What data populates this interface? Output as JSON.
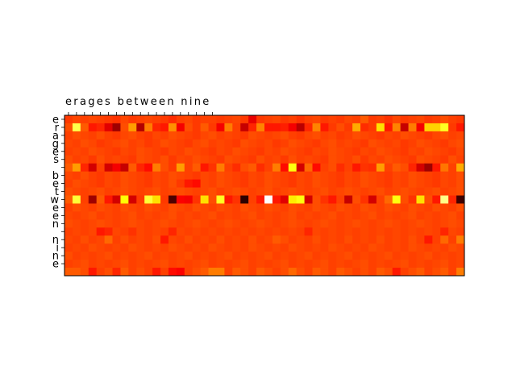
{
  "chart_data": {
    "type": "heatmap",
    "title": "",
    "xlabel": "",
    "ylabel": "",
    "colormap": "hot",
    "top_text": "erages between nine",
    "x_tick_labels": [
      "e",
      "r",
      "a",
      "g",
      "e",
      "s",
      " ",
      "b",
      "e",
      "t",
      "w",
      "e",
      "e",
      "n",
      " ",
      "n",
      "i",
      "n",
      "e"
    ],
    "y_tick_labels": [
      "e",
      "r",
      "a",
      "g",
      "e",
      "s",
      " ",
      "b",
      "e",
      "t",
      "w",
      "e",
      "e",
      "n",
      " ",
      "n",
      "i",
      "n",
      "e"
    ],
    "n_columns": 50,
    "values": [
      [
        0.45,
        0.47,
        0.46,
        0.47,
        0.46,
        0.45,
        0.44,
        0.47,
        0.45,
        0.46,
        0.47,
        0.46,
        0.45,
        0.43,
        0.46,
        0.47,
        0.45,
        0.46,
        0.46,
        0.45,
        0.46,
        0.47,
        0.45,
        0.33,
        0.45,
        0.46,
        0.47,
        0.45,
        0.46,
        0.44,
        0.46,
        0.47,
        0.45,
        0.46,
        0.45,
        0.47,
        0.46,
        0.5,
        0.45,
        0.46,
        0.44,
        0.47,
        0.45,
        0.46,
        0.47,
        0.45,
        0.46,
        0.48,
        0.46,
        0.45
      ],
      [
        0.48,
        0.82,
        0.5,
        0.4,
        0.42,
        0.32,
        0.22,
        0.48,
        0.6,
        0.25,
        0.55,
        0.42,
        0.4,
        0.58,
        0.35,
        0.48,
        0.45,
        0.5,
        0.45,
        0.35,
        0.55,
        0.46,
        0.28,
        0.42,
        0.56,
        0.4,
        0.4,
        0.41,
        0.35,
        0.26,
        0.42,
        0.56,
        0.4,
        0.45,
        0.48,
        0.45,
        0.62,
        0.43,
        0.45,
        0.7,
        0.4,
        0.56,
        0.28,
        0.55,
        0.35,
        0.68,
        0.68,
        0.78,
        0.45,
        0.4
      ],
      [
        0.46,
        0.48,
        0.47,
        0.46,
        0.48,
        0.46,
        0.45,
        0.47,
        0.48,
        0.46,
        0.45,
        0.47,
        0.46,
        0.48,
        0.47,
        0.46,
        0.45,
        0.47,
        0.48,
        0.46,
        0.47,
        0.46,
        0.45,
        0.48,
        0.47,
        0.46,
        0.47,
        0.48,
        0.46,
        0.45,
        0.47,
        0.48,
        0.46,
        0.47,
        0.45,
        0.46,
        0.48,
        0.47,
        0.46,
        0.45,
        0.47,
        0.46,
        0.48,
        0.47,
        0.46,
        0.45,
        0.47,
        0.48,
        0.46,
        0.47
      ],
      [
        0.47,
        0.46,
        0.48,
        0.47,
        0.45,
        0.46,
        0.47,
        0.48,
        0.46,
        0.47,
        0.45,
        0.46,
        0.48,
        0.47,
        0.46,
        0.45,
        0.47,
        0.48,
        0.46,
        0.47,
        0.46,
        0.45,
        0.48,
        0.47,
        0.46,
        0.47,
        0.45,
        0.46,
        0.48,
        0.47,
        0.46,
        0.45,
        0.47,
        0.48,
        0.46,
        0.47,
        0.46,
        0.45,
        0.48,
        0.47,
        0.46,
        0.47,
        0.45,
        0.46,
        0.48,
        0.47,
        0.46,
        0.45,
        0.47,
        0.48
      ],
      [
        0.46,
        0.47,
        0.46,
        0.48,
        0.47,
        0.46,
        0.45,
        0.47,
        0.46,
        0.48,
        0.47,
        0.46,
        0.45,
        0.47,
        0.46,
        0.48,
        0.47,
        0.46,
        0.45,
        0.47,
        0.46,
        0.48,
        0.47,
        0.46,
        0.45,
        0.47,
        0.46,
        0.48,
        0.47,
        0.46,
        0.45,
        0.47,
        0.46,
        0.48,
        0.47,
        0.46,
        0.45,
        0.47,
        0.46,
        0.48,
        0.47,
        0.46,
        0.45,
        0.47,
        0.46,
        0.48,
        0.47,
        0.46,
        0.45,
        0.47
      ],
      [
        0.48,
        0.46,
        0.47,
        0.45,
        0.48,
        0.46,
        0.47,
        0.46,
        0.45,
        0.48,
        0.47,
        0.46,
        0.48,
        0.45,
        0.47,
        0.46,
        0.48,
        0.47,
        0.46,
        0.45,
        0.48,
        0.47,
        0.46,
        0.45,
        0.48,
        0.46,
        0.47,
        0.45,
        0.48,
        0.46,
        0.47,
        0.46,
        0.45,
        0.48,
        0.47,
        0.46,
        0.48,
        0.45,
        0.47,
        0.46,
        0.48,
        0.47,
        0.46,
        0.45,
        0.48,
        0.47,
        0.46,
        0.45,
        0.48,
        0.46
      ],
      [
        0.5,
        0.6,
        0.42,
        0.3,
        0.46,
        0.3,
        0.35,
        0.28,
        0.5,
        0.42,
        0.38,
        0.55,
        0.48,
        0.45,
        0.6,
        0.46,
        0.5,
        0.4,
        0.44,
        0.55,
        0.46,
        0.43,
        0.48,
        0.5,
        0.43,
        0.46,
        0.55,
        0.38,
        0.76,
        0.3,
        0.52,
        0.38,
        0.46,
        0.48,
        0.43,
        0.46,
        0.4,
        0.44,
        0.43,
        0.6,
        0.46,
        0.5,
        0.48,
        0.42,
        0.3,
        0.22,
        0.4,
        0.54,
        0.46,
        0.62
      ],
      [
        0.47,
        0.46,
        0.48,
        0.46,
        0.45,
        0.47,
        0.46,
        0.48,
        0.47,
        0.46,
        0.45,
        0.47,
        0.46,
        0.48,
        0.47,
        0.46,
        0.45,
        0.47,
        0.46,
        0.48,
        0.47,
        0.46,
        0.45,
        0.47,
        0.46,
        0.48,
        0.47,
        0.46,
        0.45,
        0.47,
        0.46,
        0.48,
        0.47,
        0.46,
        0.45,
        0.47,
        0.46,
        0.48,
        0.47,
        0.46,
        0.45,
        0.47,
        0.46,
        0.48,
        0.47,
        0.46,
        0.45,
        0.47,
        0.46,
        0.48
      ],
      [
        0.46,
        0.48,
        0.47,
        0.46,
        0.45,
        0.47,
        0.46,
        0.48,
        0.47,
        0.46,
        0.45,
        0.47,
        0.46,
        0.48,
        0.45,
        0.4,
        0.38,
        0.47,
        0.46,
        0.48,
        0.47,
        0.46,
        0.45,
        0.47,
        0.46,
        0.48,
        0.47,
        0.46,
        0.45,
        0.47,
        0.46,
        0.48,
        0.47,
        0.46,
        0.45,
        0.47,
        0.46,
        0.48,
        0.47,
        0.46,
        0.45,
        0.47,
        0.46,
        0.48,
        0.47,
        0.46,
        0.45,
        0.47,
        0.46,
        0.48
      ],
      [
        0.48,
        0.47,
        0.46,
        0.47,
        0.48,
        0.46,
        0.47,
        0.48,
        0.47,
        0.46,
        0.47,
        0.48,
        0.46,
        0.47,
        0.48,
        0.47,
        0.46,
        0.47,
        0.48,
        0.46,
        0.47,
        0.48,
        0.47,
        0.46,
        0.47,
        0.48,
        0.46,
        0.47,
        0.48,
        0.47,
        0.46,
        0.47,
        0.48,
        0.46,
        0.47,
        0.48,
        0.47,
        0.46,
        0.47,
        0.48,
        0.46,
        0.47,
        0.48,
        0.47,
        0.46,
        0.47,
        0.48,
        0.46,
        0.47,
        0.48
      ],
      [
        0.5,
        0.8,
        0.46,
        0.22,
        0.5,
        0.4,
        0.3,
        0.75,
        0.3,
        0.45,
        0.8,
        0.7,
        0.45,
        0.1,
        0.36,
        0.35,
        0.44,
        0.7,
        0.48,
        0.78,
        0.4,
        0.44,
        0.05,
        0.46,
        0.4,
        1.0,
        0.4,
        0.32,
        0.72,
        0.76,
        0.3,
        0.48,
        0.44,
        0.4,
        0.46,
        0.28,
        0.48,
        0.44,
        0.3,
        0.46,
        0.52,
        0.76,
        0.48,
        0.44,
        0.7,
        0.48,
        0.4,
        0.88,
        0.42,
        0.08
      ],
      [
        0.46,
        0.48,
        0.47,
        0.46,
        0.48,
        0.47,
        0.46,
        0.48,
        0.47,
        0.46,
        0.48,
        0.47,
        0.46,
        0.48,
        0.47,
        0.46,
        0.48,
        0.47,
        0.46,
        0.48,
        0.47,
        0.46,
        0.48,
        0.47,
        0.46,
        0.48,
        0.47,
        0.46,
        0.48,
        0.47,
        0.46,
        0.48,
        0.47,
        0.46,
        0.48,
        0.47,
        0.46,
        0.48,
        0.47,
        0.46,
        0.48,
        0.47,
        0.46,
        0.48,
        0.47,
        0.46,
        0.48,
        0.47,
        0.46,
        0.48
      ],
      [
        0.47,
        0.46,
        0.47,
        0.48,
        0.46,
        0.47,
        0.46,
        0.47,
        0.48,
        0.46,
        0.47,
        0.46,
        0.47,
        0.48,
        0.46,
        0.47,
        0.46,
        0.47,
        0.48,
        0.46,
        0.47,
        0.46,
        0.47,
        0.48,
        0.46,
        0.47,
        0.46,
        0.47,
        0.48,
        0.46,
        0.47,
        0.46,
        0.47,
        0.48,
        0.46,
        0.47,
        0.46,
        0.47,
        0.48,
        0.46,
        0.47,
        0.46,
        0.47,
        0.48,
        0.46,
        0.47,
        0.46,
        0.47,
        0.48,
        0.46
      ],
      [
        0.48,
        0.47,
        0.46,
        0.47,
        0.48,
        0.47,
        0.46,
        0.47,
        0.48,
        0.47,
        0.46,
        0.47,
        0.48,
        0.47,
        0.46,
        0.47,
        0.48,
        0.47,
        0.46,
        0.47,
        0.48,
        0.47,
        0.46,
        0.47,
        0.48,
        0.47,
        0.46,
        0.47,
        0.48,
        0.47,
        0.46,
        0.47,
        0.48,
        0.47,
        0.46,
        0.47,
        0.48,
        0.47,
        0.46,
        0.47,
        0.48,
        0.47,
        0.46,
        0.47,
        0.48,
        0.47,
        0.46,
        0.47,
        0.48,
        0.47
      ],
      [
        0.46,
        0.47,
        0.46,
        0.47,
        0.4,
        0.42,
        0.47,
        0.46,
        0.44,
        0.47,
        0.46,
        0.47,
        0.46,
        0.42,
        0.47,
        0.46,
        0.47,
        0.46,
        0.47,
        0.46,
        0.47,
        0.46,
        0.47,
        0.46,
        0.47,
        0.46,
        0.47,
        0.46,
        0.47,
        0.46,
        0.42,
        0.47,
        0.46,
        0.47,
        0.46,
        0.47,
        0.46,
        0.47,
        0.46,
        0.47,
        0.46,
        0.47,
        0.46,
        0.47,
        0.46,
        0.47,
        0.46,
        0.42,
        0.47,
        0.46
      ],
      [
        0.47,
        0.46,
        0.48,
        0.46,
        0.47,
        0.52,
        0.46,
        0.48,
        0.46,
        0.47,
        0.46,
        0.48,
        0.4,
        0.47,
        0.46,
        0.48,
        0.46,
        0.47,
        0.46,
        0.48,
        0.46,
        0.47,
        0.46,
        0.48,
        0.46,
        0.47,
        0.5,
        0.48,
        0.46,
        0.47,
        0.46,
        0.48,
        0.46,
        0.47,
        0.46,
        0.48,
        0.46,
        0.47,
        0.46,
        0.48,
        0.46,
        0.47,
        0.46,
        0.48,
        0.46,
        0.4,
        0.46,
        0.52,
        0.46,
        0.55
      ],
      [
        0.46,
        0.47,
        0.46,
        0.48,
        0.47,
        0.46,
        0.47,
        0.46,
        0.48,
        0.47,
        0.46,
        0.47,
        0.46,
        0.48,
        0.47,
        0.46,
        0.47,
        0.46,
        0.48,
        0.47,
        0.46,
        0.47,
        0.46,
        0.48,
        0.47,
        0.46,
        0.47,
        0.46,
        0.48,
        0.47,
        0.46,
        0.47,
        0.46,
        0.48,
        0.47,
        0.46,
        0.47,
        0.46,
        0.48,
        0.47,
        0.46,
        0.47,
        0.46,
        0.48,
        0.47,
        0.46,
        0.47,
        0.46,
        0.48,
        0.47
      ],
      [
        0.48,
        0.46,
        0.47,
        0.46,
        0.47,
        0.48,
        0.46,
        0.47,
        0.46,
        0.47,
        0.48,
        0.46,
        0.47,
        0.46,
        0.47,
        0.48,
        0.46,
        0.47,
        0.46,
        0.47,
        0.48,
        0.46,
        0.47,
        0.46,
        0.47,
        0.48,
        0.46,
        0.47,
        0.46,
        0.47,
        0.48,
        0.46,
        0.47,
        0.46,
        0.47,
        0.48,
        0.46,
        0.47,
        0.46,
        0.47,
        0.48,
        0.46,
        0.47,
        0.46,
        0.47,
        0.48,
        0.46,
        0.47,
        0.46,
        0.47
      ],
      [
        0.46,
        0.47,
        0.48,
        0.46,
        0.47,
        0.46,
        0.47,
        0.48,
        0.46,
        0.47,
        0.46,
        0.47,
        0.48,
        0.46,
        0.47,
        0.46,
        0.47,
        0.48,
        0.46,
        0.47,
        0.46,
        0.47,
        0.48,
        0.46,
        0.47,
        0.46,
        0.47,
        0.48,
        0.46,
        0.47,
        0.46,
        0.47,
        0.48,
        0.46,
        0.47,
        0.46,
        0.47,
        0.48,
        0.46,
        0.47,
        0.46,
        0.47,
        0.48,
        0.46,
        0.47,
        0.46,
        0.47,
        0.48,
        0.46,
        0.47
      ],
      [
        0.5,
        0.5,
        0.48,
        0.4,
        0.46,
        0.48,
        0.42,
        0.5,
        0.46,
        0.48,
        0.46,
        0.4,
        0.46,
        0.38,
        0.36,
        0.46,
        0.48,
        0.5,
        0.55,
        0.55,
        0.46,
        0.5,
        0.48,
        0.46,
        0.5,
        0.48,
        0.46,
        0.48,
        0.52,
        0.48,
        0.46,
        0.5,
        0.48,
        0.46,
        0.5,
        0.48,
        0.46,
        0.48,
        0.46,
        0.5,
        0.48,
        0.4,
        0.46,
        0.48,
        0.5,
        0.46,
        0.48,
        0.5,
        0.46,
        0.55
      ]
    ]
  }
}
